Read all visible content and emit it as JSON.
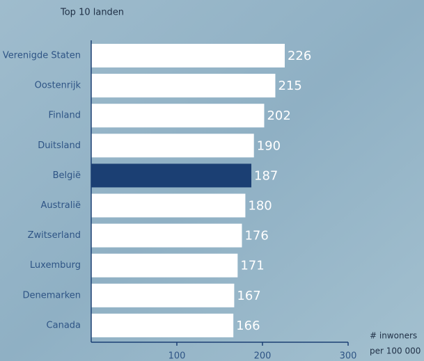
{
  "chart_data": {
    "type": "barh",
    "title": "Top 10 landen",
    "categories": [
      "Verenigde Staten",
      "Oostenrijk",
      "Finland",
      "Duitsland",
      "België",
      "Australië",
      "Zwitserland",
      "Luxemburg",
      "Denemarken",
      "Canada"
    ],
    "values": [
      226,
      215,
      202,
      190,
      187,
      180,
      176,
      171,
      167,
      166
    ],
    "bar_colors": [
      "#ffffff",
      "#ffffff",
      "#ffffff",
      "#ffffff",
      "#1b3f73",
      "#ffffff",
      "#ffffff",
      "#ffffff",
      "#ffffff",
      "#ffffff"
    ],
    "xlabel": [
      "# inwoners",
      "per 100 000"
    ],
    "xlim": [
      0,
      300
    ],
    "xticks": [
      100,
      200,
      300
    ],
    "axis_color": "#1b3f73"
  }
}
